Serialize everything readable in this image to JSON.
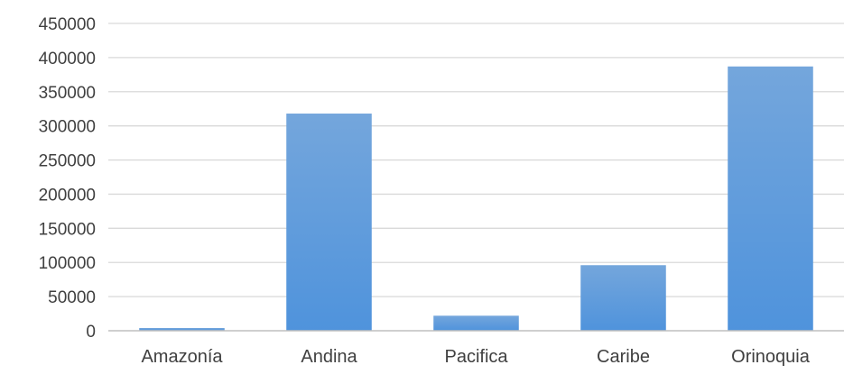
{
  "chart_data": {
    "type": "bar",
    "title": "",
    "xlabel": "",
    "ylabel": "",
    "categories": [
      "Amazonía",
      "Andina",
      "Pacifica",
      "Caribe",
      "Orinoquia"
    ],
    "values": [
      4000,
      318000,
      22000,
      96000,
      387000
    ],
    "ylim": [
      0,
      450000
    ],
    "yticks": [
      0,
      50000,
      100000,
      150000,
      200000,
      250000,
      300000,
      350000,
      400000,
      450000
    ],
    "grid": true,
    "legend": "none",
    "colors": {
      "bar_top": "#74a6dc",
      "bar_bottom": "#4f93dc",
      "grid": "#d9d9d9",
      "axis": "#bfbfbf",
      "text": "#404040"
    }
  }
}
